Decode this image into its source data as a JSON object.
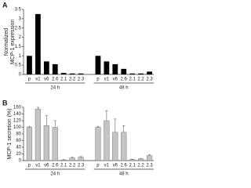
{
  "chart_data": [
    {
      "type": "bar",
      "panel": "A",
      "ylabel": [
        "Normalized",
        "MCP-1 expression"
      ],
      "categories": [
        "p",
        "v1",
        "v6",
        "2.6",
        "2.1",
        "2.2",
        "2.3",
        "p",
        "v1",
        "v6",
        "2.6",
        "2.1",
        "2.2",
        "2.3"
      ],
      "groups": [
        "24 h",
        "48 h"
      ],
      "series": [
        {
          "color": "#000000",
          "values": [
            1.0,
            3.25,
            0.7,
            0.55,
            0.08,
            0.05,
            0.05,
            1.0,
            0.7,
            0.55,
            0.3,
            0.05,
            0.05,
            0.15
          ]
        }
      ],
      "ylim": [
        0,
        3.5
      ],
      "yticks": [
        0,
        0.5,
        1,
        1.5,
        2,
        2.5,
        3,
        3.5
      ]
    },
    {
      "type": "bar",
      "panel": "B",
      "ylabel": [
        "MCP-1 secretion (%)"
      ],
      "categories": [
        "p",
        "v1",
        "v6",
        "2.6",
        "2.1",
        "2.2",
        "2.3",
        "p",
        "v1",
        "v6",
        "2.6",
        "2.1",
        "2.2",
        "2.3"
      ],
      "groups": [
        "24 h",
        "48 h"
      ],
      "series": [
        {
          "color": "#c4c4c4",
          "values": [
            100,
            155,
            105,
            100,
            2,
            8,
            10,
            100,
            120,
            85,
            85,
            3,
            5,
            15
          ],
          "errors": [
            3,
            5,
            30,
            20,
            1,
            2,
            2,
            3,
            30,
            40,
            20,
            1,
            1,
            3
          ]
        }
      ],
      "ylim": [
        0,
        160
      ],
      "yticks": [
        0,
        20,
        40,
        60,
        80,
        100,
        120,
        140,
        160
      ]
    }
  ]
}
